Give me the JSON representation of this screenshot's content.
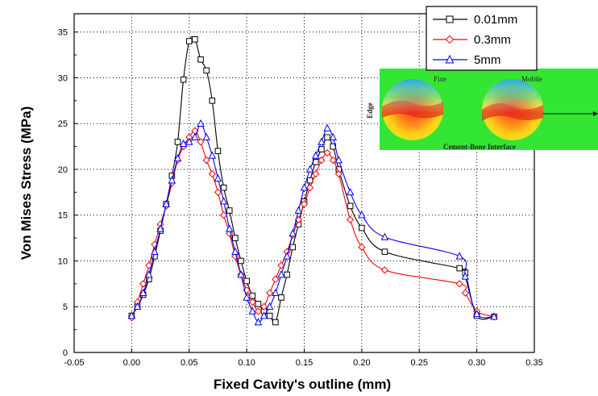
{
  "chart_data": {
    "type": "line",
    "xlabel": "Fixed Cavity's outline (mm)",
    "ylabel": "Von Mises Stress (MPa)",
    "xlim": [
      -0.05,
      0.35
    ],
    "ylim": [
      0,
      37
    ],
    "xticks": [
      "-0.05",
      "0.00",
      "0.05",
      "0.10",
      "0.15",
      "0.20",
      "0.25",
      "0.30",
      "0.35"
    ],
    "yticks": [
      "0",
      "5",
      "10",
      "15",
      "20",
      "25",
      "30",
      "35"
    ],
    "grid": true,
    "legend_position": "top-right",
    "series": [
      {
        "name": "0.01mm",
        "color": "#000000",
        "marker": "square",
        "x": [
          0.0,
          0.005,
          0.01,
          0.015,
          0.02,
          0.025,
          0.03,
          0.035,
          0.04,
          0.045,
          0.05,
          0.055,
          0.06,
          0.065,
          0.07,
          0.075,
          0.08,
          0.085,
          0.09,
          0.095,
          0.1,
          0.105,
          0.11,
          0.115,
          0.12,
          0.125,
          0.13,
          0.135,
          0.14,
          0.145,
          0.15,
          0.155,
          0.16,
          0.165,
          0.17,
          0.175,
          0.18,
          0.19,
          0.2,
          0.22,
          0.285,
          0.29,
          0.3,
          0.315
        ],
        "y": [
          4.0,
          5.0,
          6.3,
          8.0,
          10.5,
          13.3,
          16.2,
          19.3,
          23.0,
          29.8,
          34.0,
          34.2,
          32.0,
          30.8,
          27.5,
          22.0,
          18.0,
          15.5,
          12.5,
          10.0,
          7.8,
          6.2,
          5.3,
          4.5,
          4.0,
          3.3,
          6.0,
          8.5,
          11.5,
          14.0,
          16.5,
          18.8,
          20.8,
          22.2,
          23.5,
          22.5,
          20.0,
          16.0,
          13.6,
          11.0,
          9.2,
          8.7,
          4.0,
          3.9
        ]
      },
      {
        "name": "0.3mm",
        "color": "#ff0000",
        "marker": "diamond",
        "x": [
          0.0,
          0.005,
          0.01,
          0.015,
          0.02,
          0.025,
          0.03,
          0.035,
          0.04,
          0.045,
          0.05,
          0.055,
          0.06,
          0.065,
          0.07,
          0.075,
          0.08,
          0.085,
          0.09,
          0.095,
          0.1,
          0.105,
          0.11,
          0.115,
          0.12,
          0.125,
          0.13,
          0.135,
          0.14,
          0.145,
          0.15,
          0.155,
          0.16,
          0.165,
          0.17,
          0.175,
          0.18,
          0.19,
          0.2,
          0.22,
          0.285,
          0.29,
          0.3,
          0.315
        ],
        "y": [
          3.8,
          5.5,
          7.5,
          9.5,
          11.8,
          14.0,
          16.0,
          18.5,
          21.0,
          22.5,
          23.5,
          24.2,
          23.0,
          21.0,
          19.5,
          17.5,
          15.0,
          13.0,
          10.5,
          8.5,
          6.8,
          5.5,
          4.5,
          5.0,
          6.5,
          8.0,
          9.5,
          11.0,
          12.8,
          14.5,
          16.2,
          18.0,
          19.5,
          21.0,
          21.8,
          21.0,
          19.5,
          14.5,
          11.5,
          9.0,
          7.5,
          6.5,
          4.5,
          3.9
        ]
      },
      {
        "name": "5mm",
        "color": "#0000ff",
        "marker": "triangle",
        "x": [
          0.0,
          0.005,
          0.01,
          0.015,
          0.02,
          0.025,
          0.03,
          0.035,
          0.04,
          0.045,
          0.05,
          0.055,
          0.06,
          0.065,
          0.07,
          0.075,
          0.08,
          0.085,
          0.09,
          0.095,
          0.1,
          0.105,
          0.11,
          0.115,
          0.12,
          0.125,
          0.13,
          0.135,
          0.14,
          0.145,
          0.15,
          0.155,
          0.16,
          0.165,
          0.17,
          0.175,
          0.18,
          0.19,
          0.2,
          0.22,
          0.285,
          0.29,
          0.3,
          0.315
        ],
        "y": [
          4.0,
          5.0,
          6.5,
          8.5,
          11.0,
          13.5,
          16.2,
          18.8,
          21.2,
          22.8,
          23.0,
          23.5,
          25.0,
          23.5,
          21.5,
          19.0,
          16.5,
          13.5,
          11.0,
          8.5,
          6.0,
          4.5,
          3.3,
          4.0,
          5.0,
          6.5,
          8.5,
          10.5,
          13.0,
          15.5,
          18.0,
          20.0,
          21.5,
          23.0,
          24.5,
          23.5,
          21.0,
          17.5,
          15.0,
          12.6,
          10.5,
          8.3,
          4.2,
          3.9
        ]
      }
    ]
  },
  "inset": {
    "labels": {
      "fixe": "Fixe",
      "mobile": "Mobile",
      "edge": "Edge",
      "interface": "Cement-Bone Interface"
    },
    "background_color": "#33e633"
  }
}
